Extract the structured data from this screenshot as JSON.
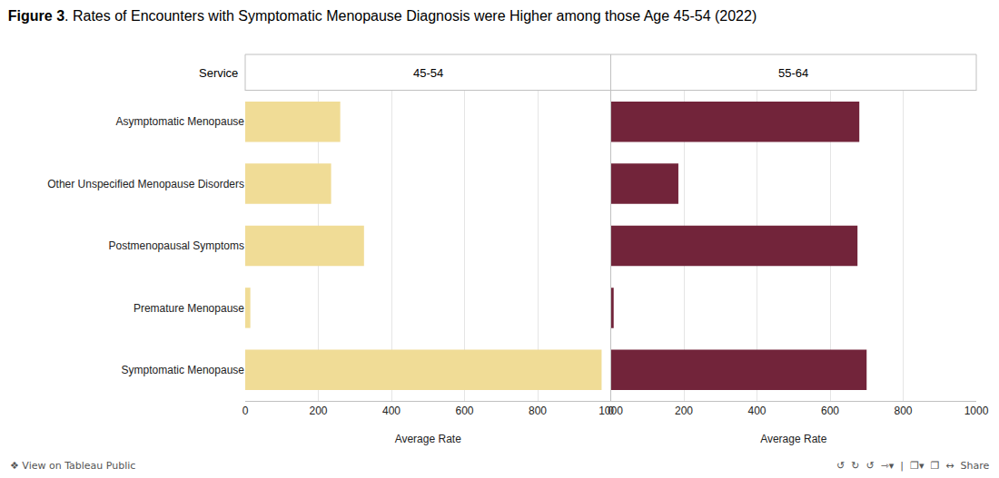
{
  "chart_data": {
    "type": "bar",
    "orientation": "horizontal",
    "title": "Figure 3. Rates of Encounters with Symptomatic Menopause Diagnosis were Higher among those Age 45-54 (2022)",
    "categories": [
      "Asymptomatic Menopause",
      "Other Unspecified Menopause Disorders",
      "Postmenopausal Symptoms",
      "Premature Menopause",
      "Symptomatic Menopause"
    ],
    "series": [
      {
        "name": "45-54",
        "color": "#F0DC96",
        "values": [
          260,
          235,
          325,
          14,
          975
        ]
      },
      {
        "name": "55-64",
        "color": "#72243A",
        "values": [
          680,
          185,
          675,
          8,
          700
        ]
      }
    ],
    "xlim": [
      0,
      1000
    ],
    "xticks": [
      0,
      200,
      400,
      600,
      800,
      1000
    ],
    "xlabel": "Average Rate",
    "ylabel": "Service",
    "grid": true,
    "annotations": [
      "❖ View on Tableau Public",
      "↺  ↻  ↺  ⇾▾  |  ❐▾  ❐  ↔  Share"
    ]
  }
}
